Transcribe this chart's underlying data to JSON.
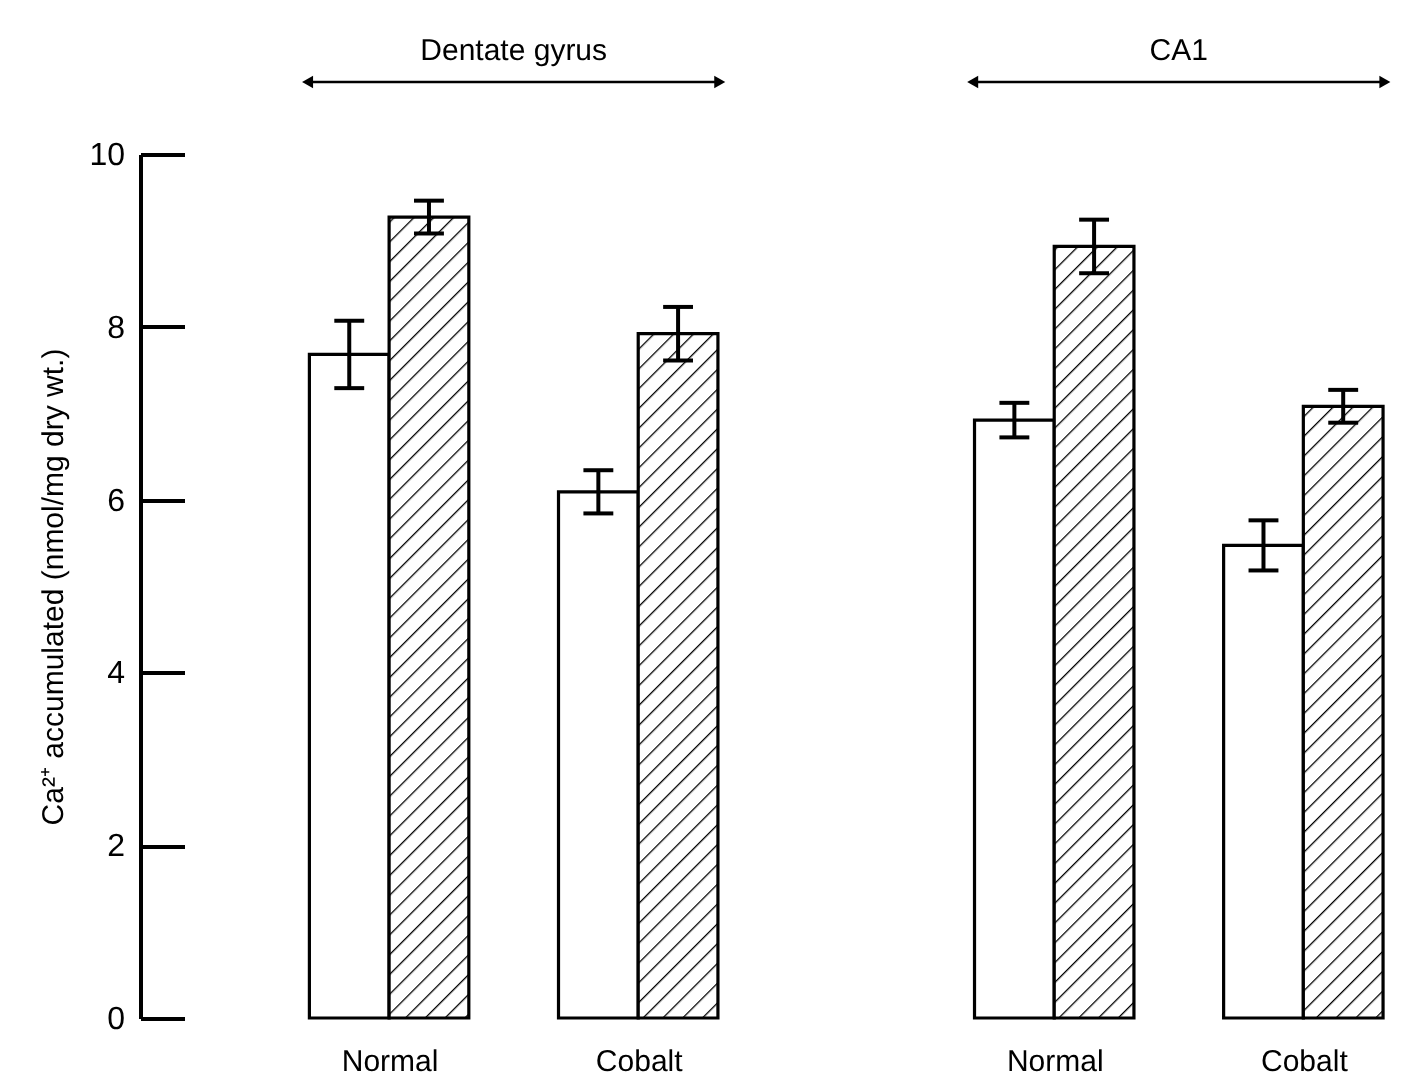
{
  "chart_data": {
    "type": "bar",
    "categories": [
      "Normal",
      "Cobalt",
      "Normal",
      "Cobalt"
    ],
    "ylabel": "Ca²⁺ accumulated (nmol/mg dry wt.)",
    "series": [
      {
        "color": "#ffffff",
        "values": [
          7.68,
          6.09,
          6.92,
          5.47
        ],
        "errors": [
          0.39,
          0.25,
          0.2,
          0.29
        ]
      },
      {
        "color": "#000000",
        "values": [
          9.27,
          7.92,
          8.93,
          7.08
        ],
        "errors": [
          0.19,
          0.31,
          0.31,
          0.19
        ]
      }
    ],
    "ylim": [
      0,
      10
    ],
    "yticks": [
      0,
      2,
      4,
      6,
      8,
      10
    ],
    "grid": false,
    "annotations": [
      "Dentate gyrus",
      "CA1"
    ]
  }
}
